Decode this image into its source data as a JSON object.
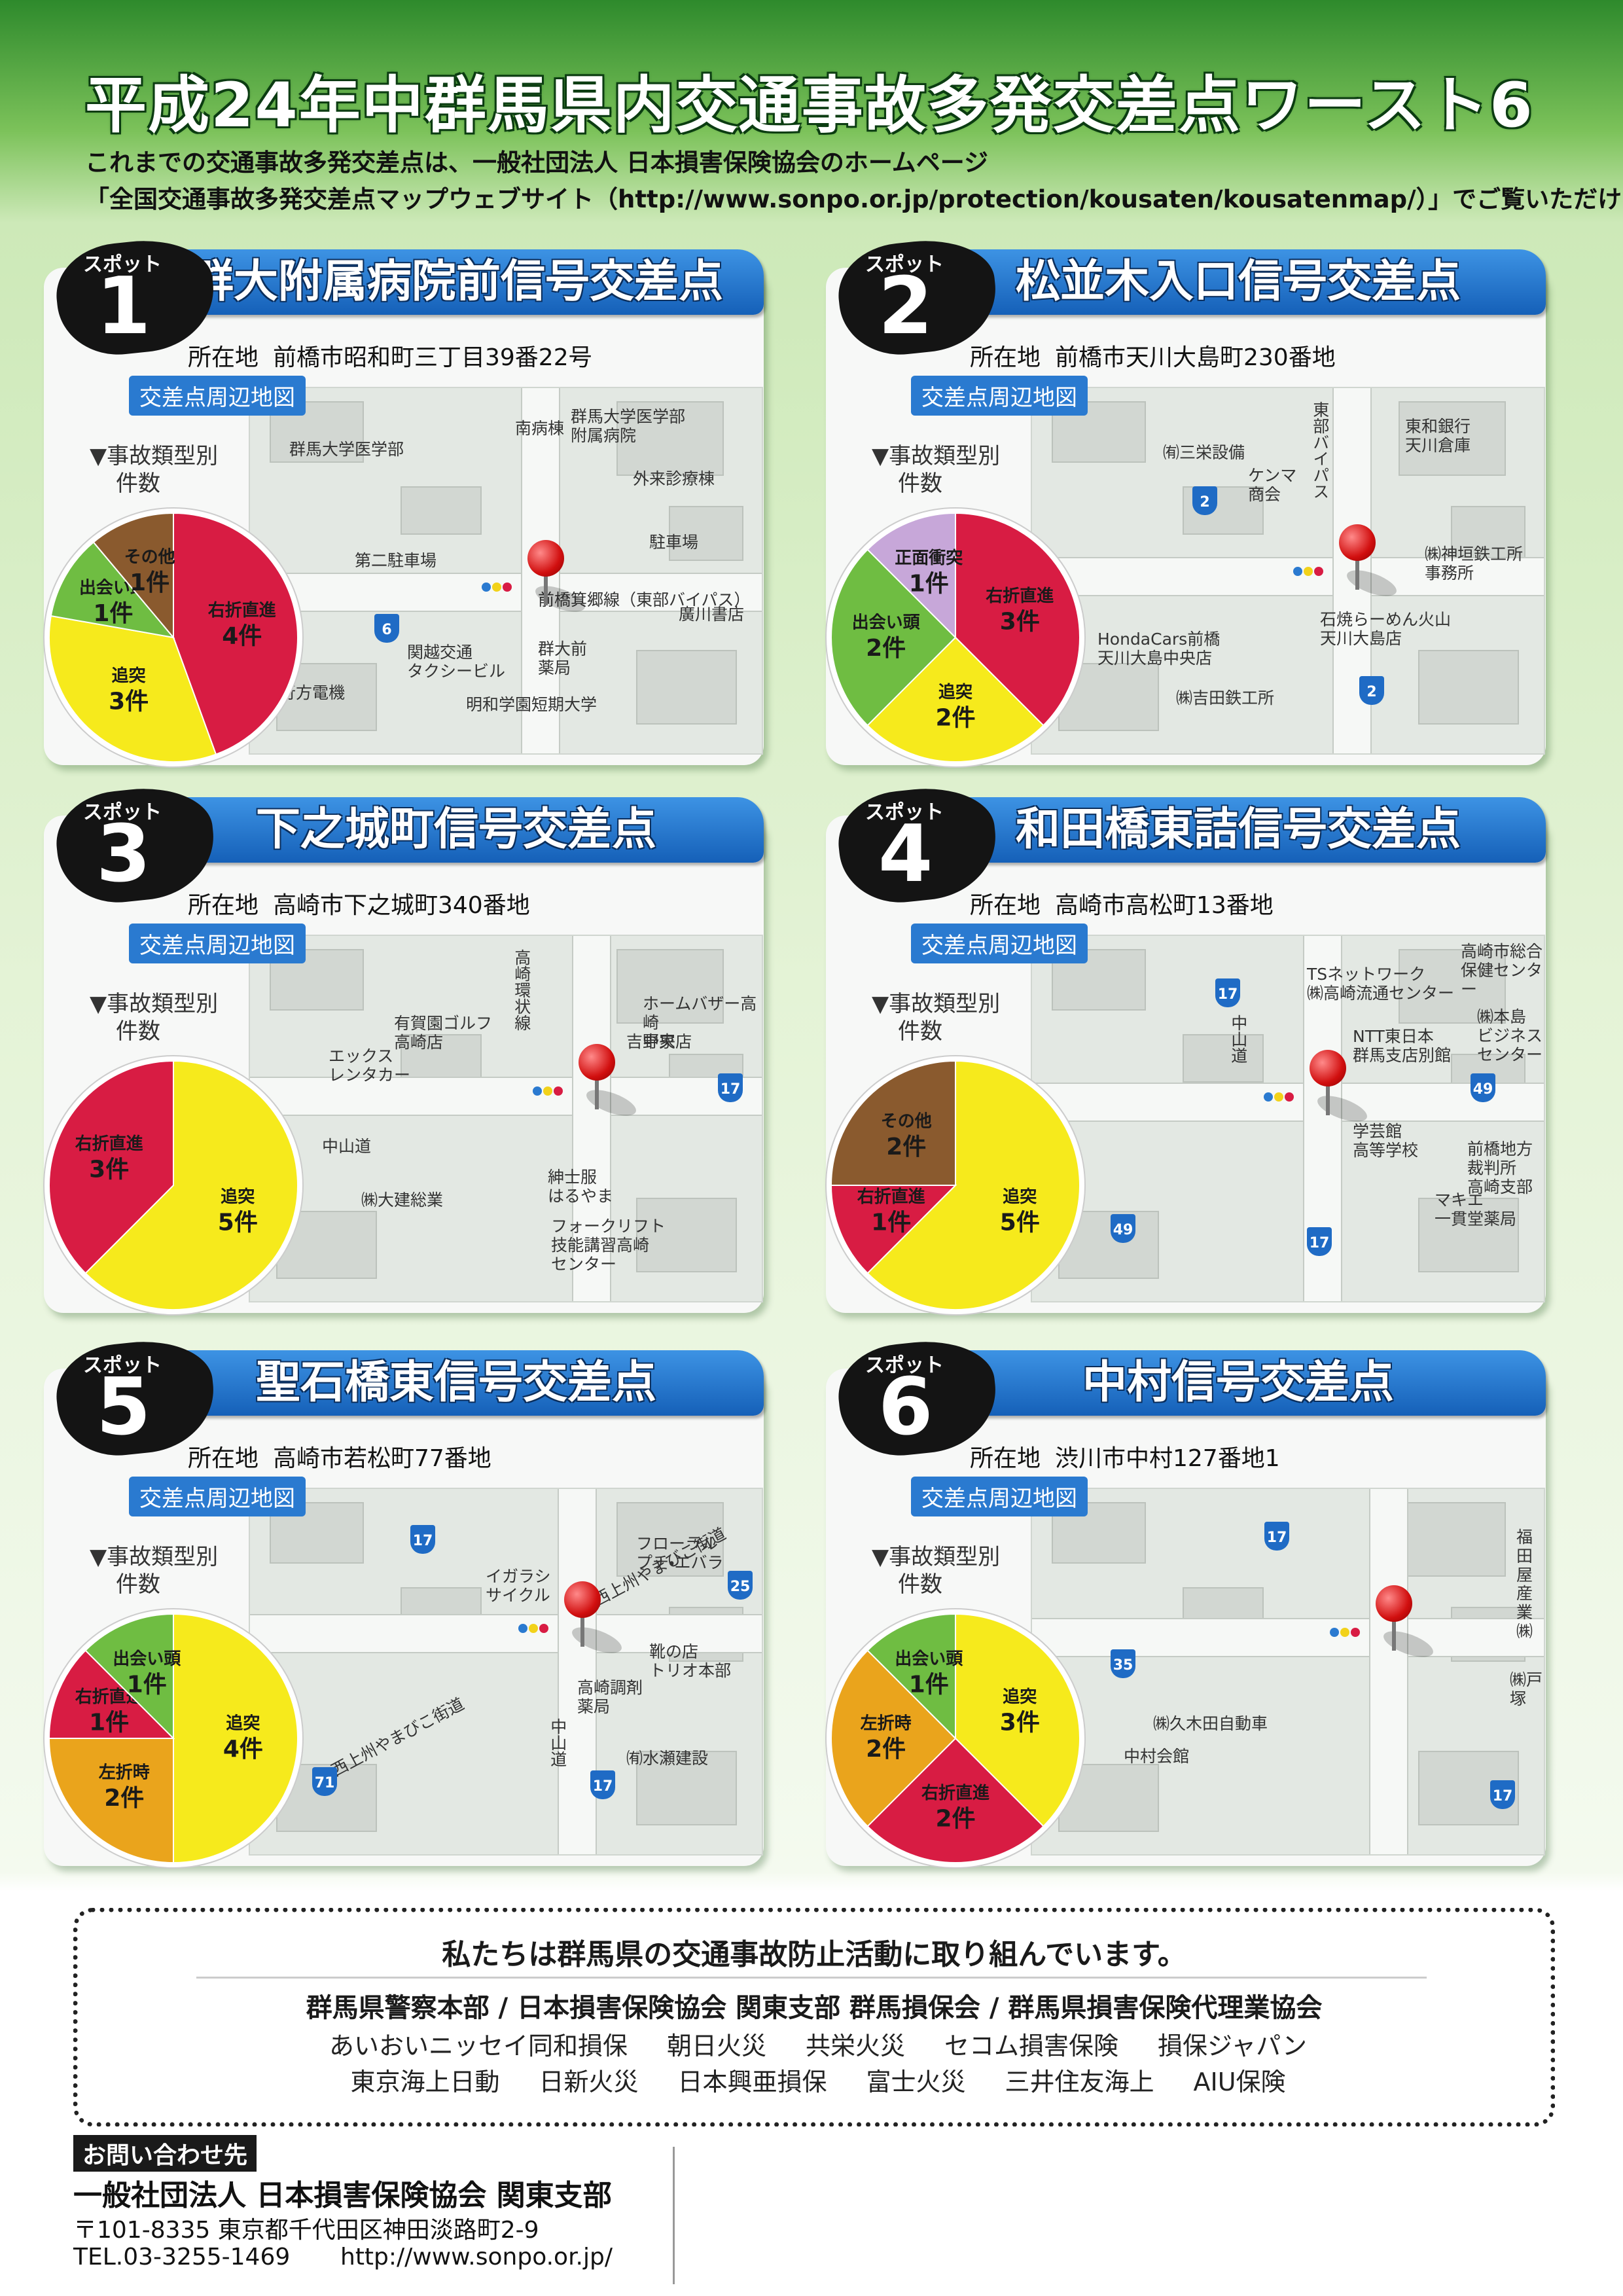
{
  "header": {
    "title": "平成24年中群馬県内交通事故多発交差点ワースト6",
    "lines": [
      "これまでの交通事故多発交差点は、一般社団法人 日本損害保険協会のホームページ",
      "「全国交通事故多発交差点マップウェブサイト（http://www.sonpo.or.jp/protection/kousaten/kousatenmap/）」でご覧いただけます。"
    ]
  },
  "spots": [
    {
      "badge": "スポット",
      "number": "1",
      "name": "群大附属病院前信号交差点",
      "address_label": "所在地",
      "address": "前橋市昭和町三丁目39番22号",
      "map_label": "交差点周辺地図",
      "chart_label": [
        "▼事故類型別",
        "件数"
      ],
      "map_places": [
        "群馬大学医学部",
        "南病棟",
        "群馬大学医学部\n附属病院",
        "外来診療棟",
        "第二駐車場",
        "駐車場",
        "前橋箕郷線（東部バイパス）",
        "廣川書店",
        "関越交通\nタクシービル",
        "群大前\n薬局",
        "行方電機",
        "明和学園短期大学"
      ],
      "routes": [
        "6"
      ],
      "pie": {
        "slices": [
          {
            "label": "右折直進",
            "value": 4,
            "value_label": "4件",
            "color": "#d81c43"
          },
          {
            "label": "追突",
            "value": 3,
            "value_label": "3件",
            "color": "#f6ea1c"
          },
          {
            "label": "出会い頭",
            "value": 1,
            "value_label": "1件",
            "color": "#6fbd42"
          },
          {
            "label": "その他",
            "value": 1,
            "value_label": "1件",
            "color": "#8a5a2e"
          }
        ]
      }
    },
    {
      "badge": "スポット",
      "number": "2",
      "name": "松並木入口信号交差点",
      "address_label": "所在地",
      "address": "前橋市天川大島町230番地",
      "map_label": "交差点周辺地図",
      "chart_label": [
        "▼事故類型別",
        "件数"
      ],
      "map_places": [
        "㈲三栄設備",
        "ケンマ\n商会",
        "東部バイパス",
        "東和銀行\n天川倉庫",
        "㈱神垣鉄工所\n事務所",
        "HondaCars前橋\n天川大島中央店",
        "石焼らーめん火山\n天川大島店",
        "㈱吉田鉄工所"
      ],
      "routes": [
        "2",
        "2"
      ],
      "pie": {
        "slices": [
          {
            "label": "右折直進",
            "value": 3,
            "value_label": "3件",
            "color": "#d81c43"
          },
          {
            "label": "追突",
            "value": 2,
            "value_label": "2件",
            "color": "#f6ea1c"
          },
          {
            "label": "出会い頭",
            "value": 2,
            "value_label": "2件",
            "color": "#6fbd42"
          },
          {
            "label": "正面衝突",
            "value": 1,
            "value_label": "1件",
            "color": "#c7a7d9"
          }
        ]
      }
    },
    {
      "badge": "スポット",
      "number": "3",
      "name": "下之城町信号交差点",
      "address_label": "所在地",
      "address": "高崎市下之城町340番地",
      "map_label": "交差点周辺地図",
      "chart_label": [
        "▼事故類型別",
        "件数"
      ],
      "map_places": [
        "高崎環状線",
        "ホームバザー高崎\n中央店",
        "吉野家",
        "有賀園ゴルフ\n高崎店",
        "エックス\nレンタカー",
        "中山道",
        "㈱大建総業",
        "紳士服\nはるやま",
        "フォークリフト\n技能講習高崎\nセンター"
      ],
      "routes": [
        "17"
      ],
      "pie": {
        "slices": [
          {
            "label": "追突",
            "value": 5,
            "value_label": "5件",
            "color": "#f6ea1c"
          },
          {
            "label": "右折直進",
            "value": 3,
            "value_label": "3件",
            "color": "#d81c43"
          }
        ]
      }
    },
    {
      "badge": "スポット",
      "number": "4",
      "name": "和田橋東詰信号交差点",
      "address_label": "所在地",
      "address": "高崎市高松町13番地",
      "map_label": "交差点周辺地図",
      "chart_label": [
        "▼事故類型別",
        "件数"
      ],
      "map_places": [
        "中山道",
        "TSネットワーク\n㈱高崎流通センター",
        "高崎市総合\n保健センター",
        "NTT東日本\n群馬支店別館",
        "㈱本島\nビジネス\nセンター",
        "学芸館\n高等学校",
        "前橋地方裁判所\n高崎支部",
        "マキエ\n一貫堂薬局"
      ],
      "routes": [
        "17",
        "49",
        "49",
        "17"
      ],
      "pie": {
        "slices": [
          {
            "label": "追突",
            "value": 5,
            "value_label": "5件",
            "color": "#f6ea1c"
          },
          {
            "label": "右折直進",
            "value": 1,
            "value_label": "1件",
            "color": "#d81c43"
          },
          {
            "label": "その他",
            "value": 2,
            "value_label": "2件",
            "color": "#8a5a2e"
          }
        ]
      }
    },
    {
      "badge": "スポット",
      "number": "5",
      "name": "聖石橋東信号交差点",
      "address_label": "所在地",
      "address": "高崎市若松町77番地",
      "map_label": "交差点周辺地図",
      "chart_label": [
        "▼事故類型別",
        "件数"
      ],
      "map_places": [
        "フローラル\nプチ・エバラ",
        "イガラシ\nサイクル",
        "西上州やまびこ街道",
        "靴の店\nトリオ本部",
        "高崎調剤\n薬局",
        "中山道",
        "㈲水瀬建設",
        "西上州やまびこ街道"
      ],
      "routes": [
        "17",
        "25",
        "71",
        "17"
      ],
      "pie": {
        "slices": [
          {
            "label": "追突",
            "value": 4,
            "value_label": "4件",
            "color": "#f6ea1c"
          },
          {
            "label": "左折時",
            "value": 2,
            "value_label": "2件",
            "color": "#eaa41c"
          },
          {
            "label": "右折直進",
            "value": 1,
            "value_label": "1件",
            "color": "#d81c43"
          },
          {
            "label": "出会い頭",
            "value": 1,
            "value_label": "1件",
            "color": "#6fbd42"
          }
        ]
      }
    },
    {
      "badge": "スポット",
      "number": "6",
      "name": "中村信号交差点",
      "address_label": "所在地",
      "address": "渋川市中村127番地1",
      "map_label": "交差点周辺地図",
      "chart_label": [
        "▼事故類型別",
        "件数"
      ],
      "map_places": [
        "福田屋\n産業㈱",
        "㈱久木田自動車",
        "中村会館",
        "㈱戸塚"
      ],
      "routes": [
        "17",
        "35",
        "17"
      ],
      "pie": {
        "slices": [
          {
            "label": "追突",
            "value": 3,
            "value_label": "3件",
            "color": "#f6ea1c"
          },
          {
            "label": "右折直進",
            "value": 2,
            "value_label": "2件",
            "color": "#d81c43"
          },
          {
            "label": "左折時",
            "value": 2,
            "value_label": "2件",
            "color": "#eaa41c"
          },
          {
            "label": "出会い頭",
            "value": 1,
            "value_label": "1件",
            "color": "#6fbd42"
          }
        ]
      }
    }
  ],
  "footer": {
    "message": "私たちは群馬県の交通事故防止活動に取り組んでいます。",
    "organizers": "群馬県警察本部 / 日本損害保険協会 関東支部 群馬損保会 / 群馬県損害保険代理業協会",
    "members": [
      [
        "あいおいニッセイ同和損保",
        "朝日火災",
        "共栄火災",
        "セコム損害保険",
        "損保ジャパン"
      ],
      [
        "東京海上日動",
        "日新火災",
        "日本興亜損保",
        "富士火災",
        "三井住友海上",
        "AIU保険"
      ]
    ]
  },
  "contact": {
    "tag": "お問い合わせ先",
    "org": "一般社団法人 日本損害保険協会 関東支部",
    "address": "〒101-8335 東京都千代田区神田淡路町2-9",
    "tel": "TEL.03-3255-1469",
    "url": "http://www.sonpo.or.jp/"
  }
}
